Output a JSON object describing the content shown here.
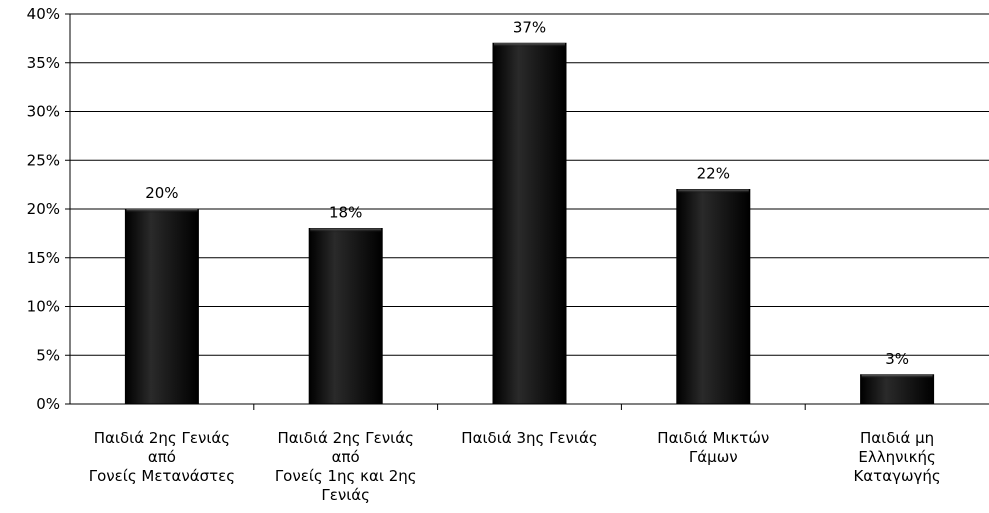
{
  "chart_data": {
    "type": "bar",
    "categories": [
      [
        "Παιδιά 2ης Γενιάς",
        "από",
        "Γονείς Μετανάστες"
      ],
      [
        "Παιδιά 2ης Γενιάς",
        "από",
        "Γονείς 1ης και 2ης",
        "Γενιάς"
      ],
      [
        "Παιδιά 3ης Γενιάς"
      ],
      [
        "Παιδιά Μικτών",
        "Γάμων"
      ],
      [
        "Παιδιά μη",
        "Ελληνικής",
        "Καταγωγής"
      ]
    ],
    "values": [
      20,
      18,
      37,
      22,
      3
    ],
    "data_labels": [
      "20%",
      "18%",
      "37%",
      "22%",
      "3%"
    ],
    "y_ticks": [
      "0%",
      "5%",
      "10%",
      "15%",
      "20%",
      "25%",
      "30%",
      "35%",
      "40%"
    ],
    "ylim": [
      0,
      40
    ],
    "grid": true,
    "legend": "none",
    "bar_color": "#111111"
  }
}
